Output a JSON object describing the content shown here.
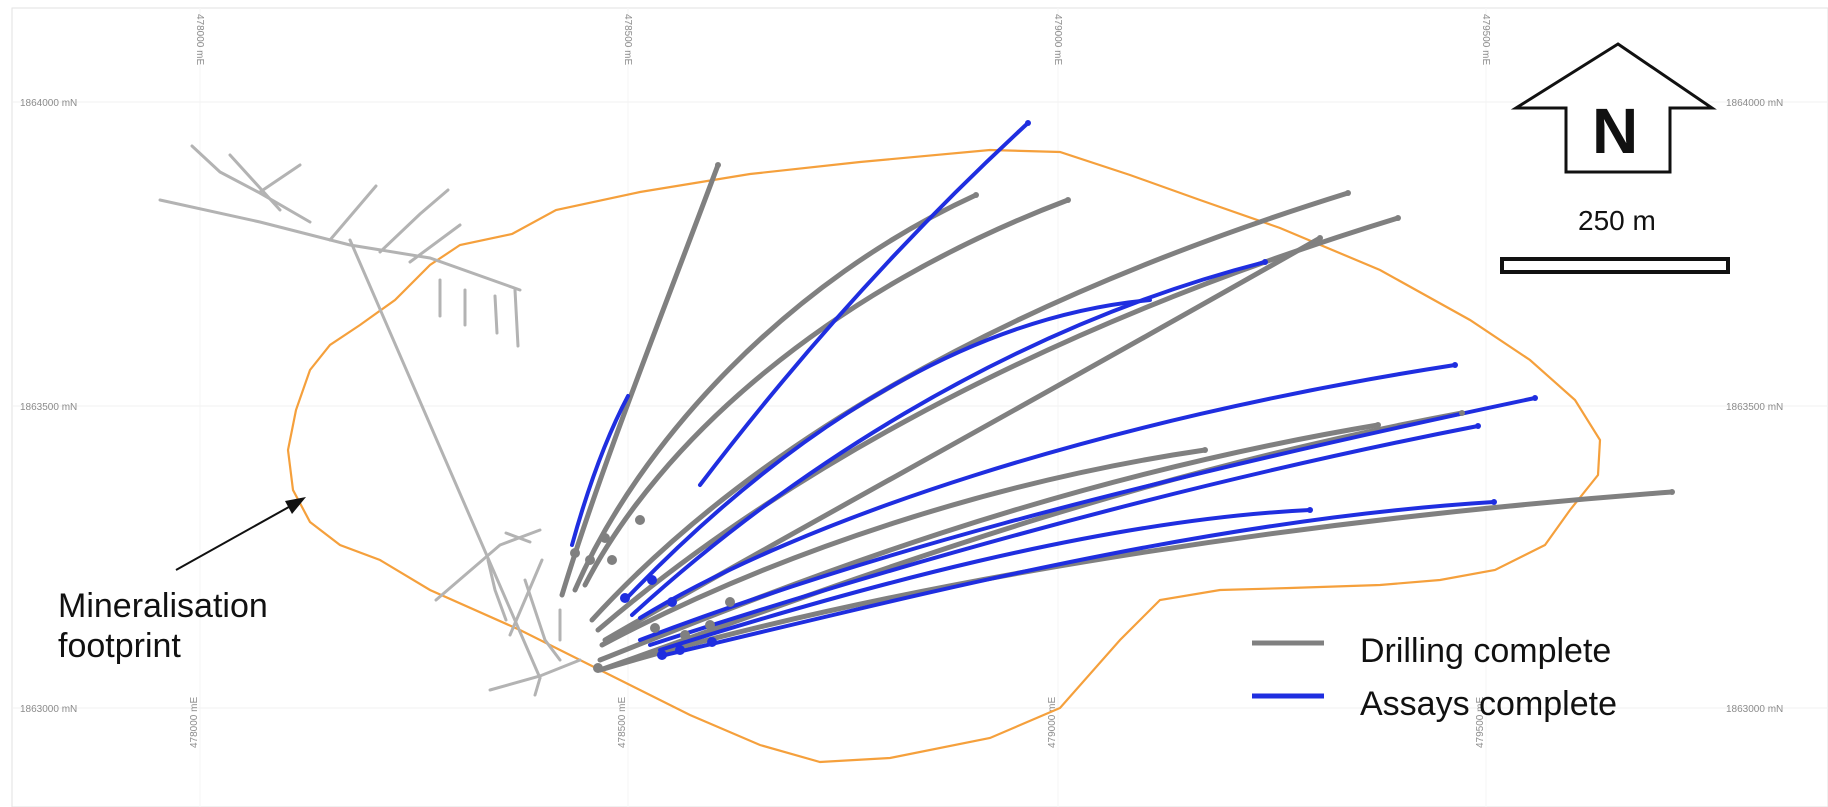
{
  "colors": {
    "drilling": "#808080",
    "assays": "#1f2ee0",
    "footprint": "#f5a03c",
    "workings": "#b3b3b3",
    "grid": "#eeeeee"
  },
  "grid": {
    "easting_labels": [
      "478000 mE",
      "478500 mE",
      "479000 mE",
      "479500 mE"
    ],
    "northing_labels": [
      "1864000 mN",
      "1863500 mN",
      "1863000 mN"
    ]
  },
  "north_arrow": {
    "label": "N"
  },
  "scale_bar": {
    "label": "250 m"
  },
  "callout": {
    "line1": "Mineralisation",
    "line2": "footprint"
  },
  "legend": {
    "items": [
      {
        "label": "Drilling complete",
        "icon": "grey-line"
      },
      {
        "label": "Assays complete",
        "icon": "blue-line"
      }
    ]
  }
}
